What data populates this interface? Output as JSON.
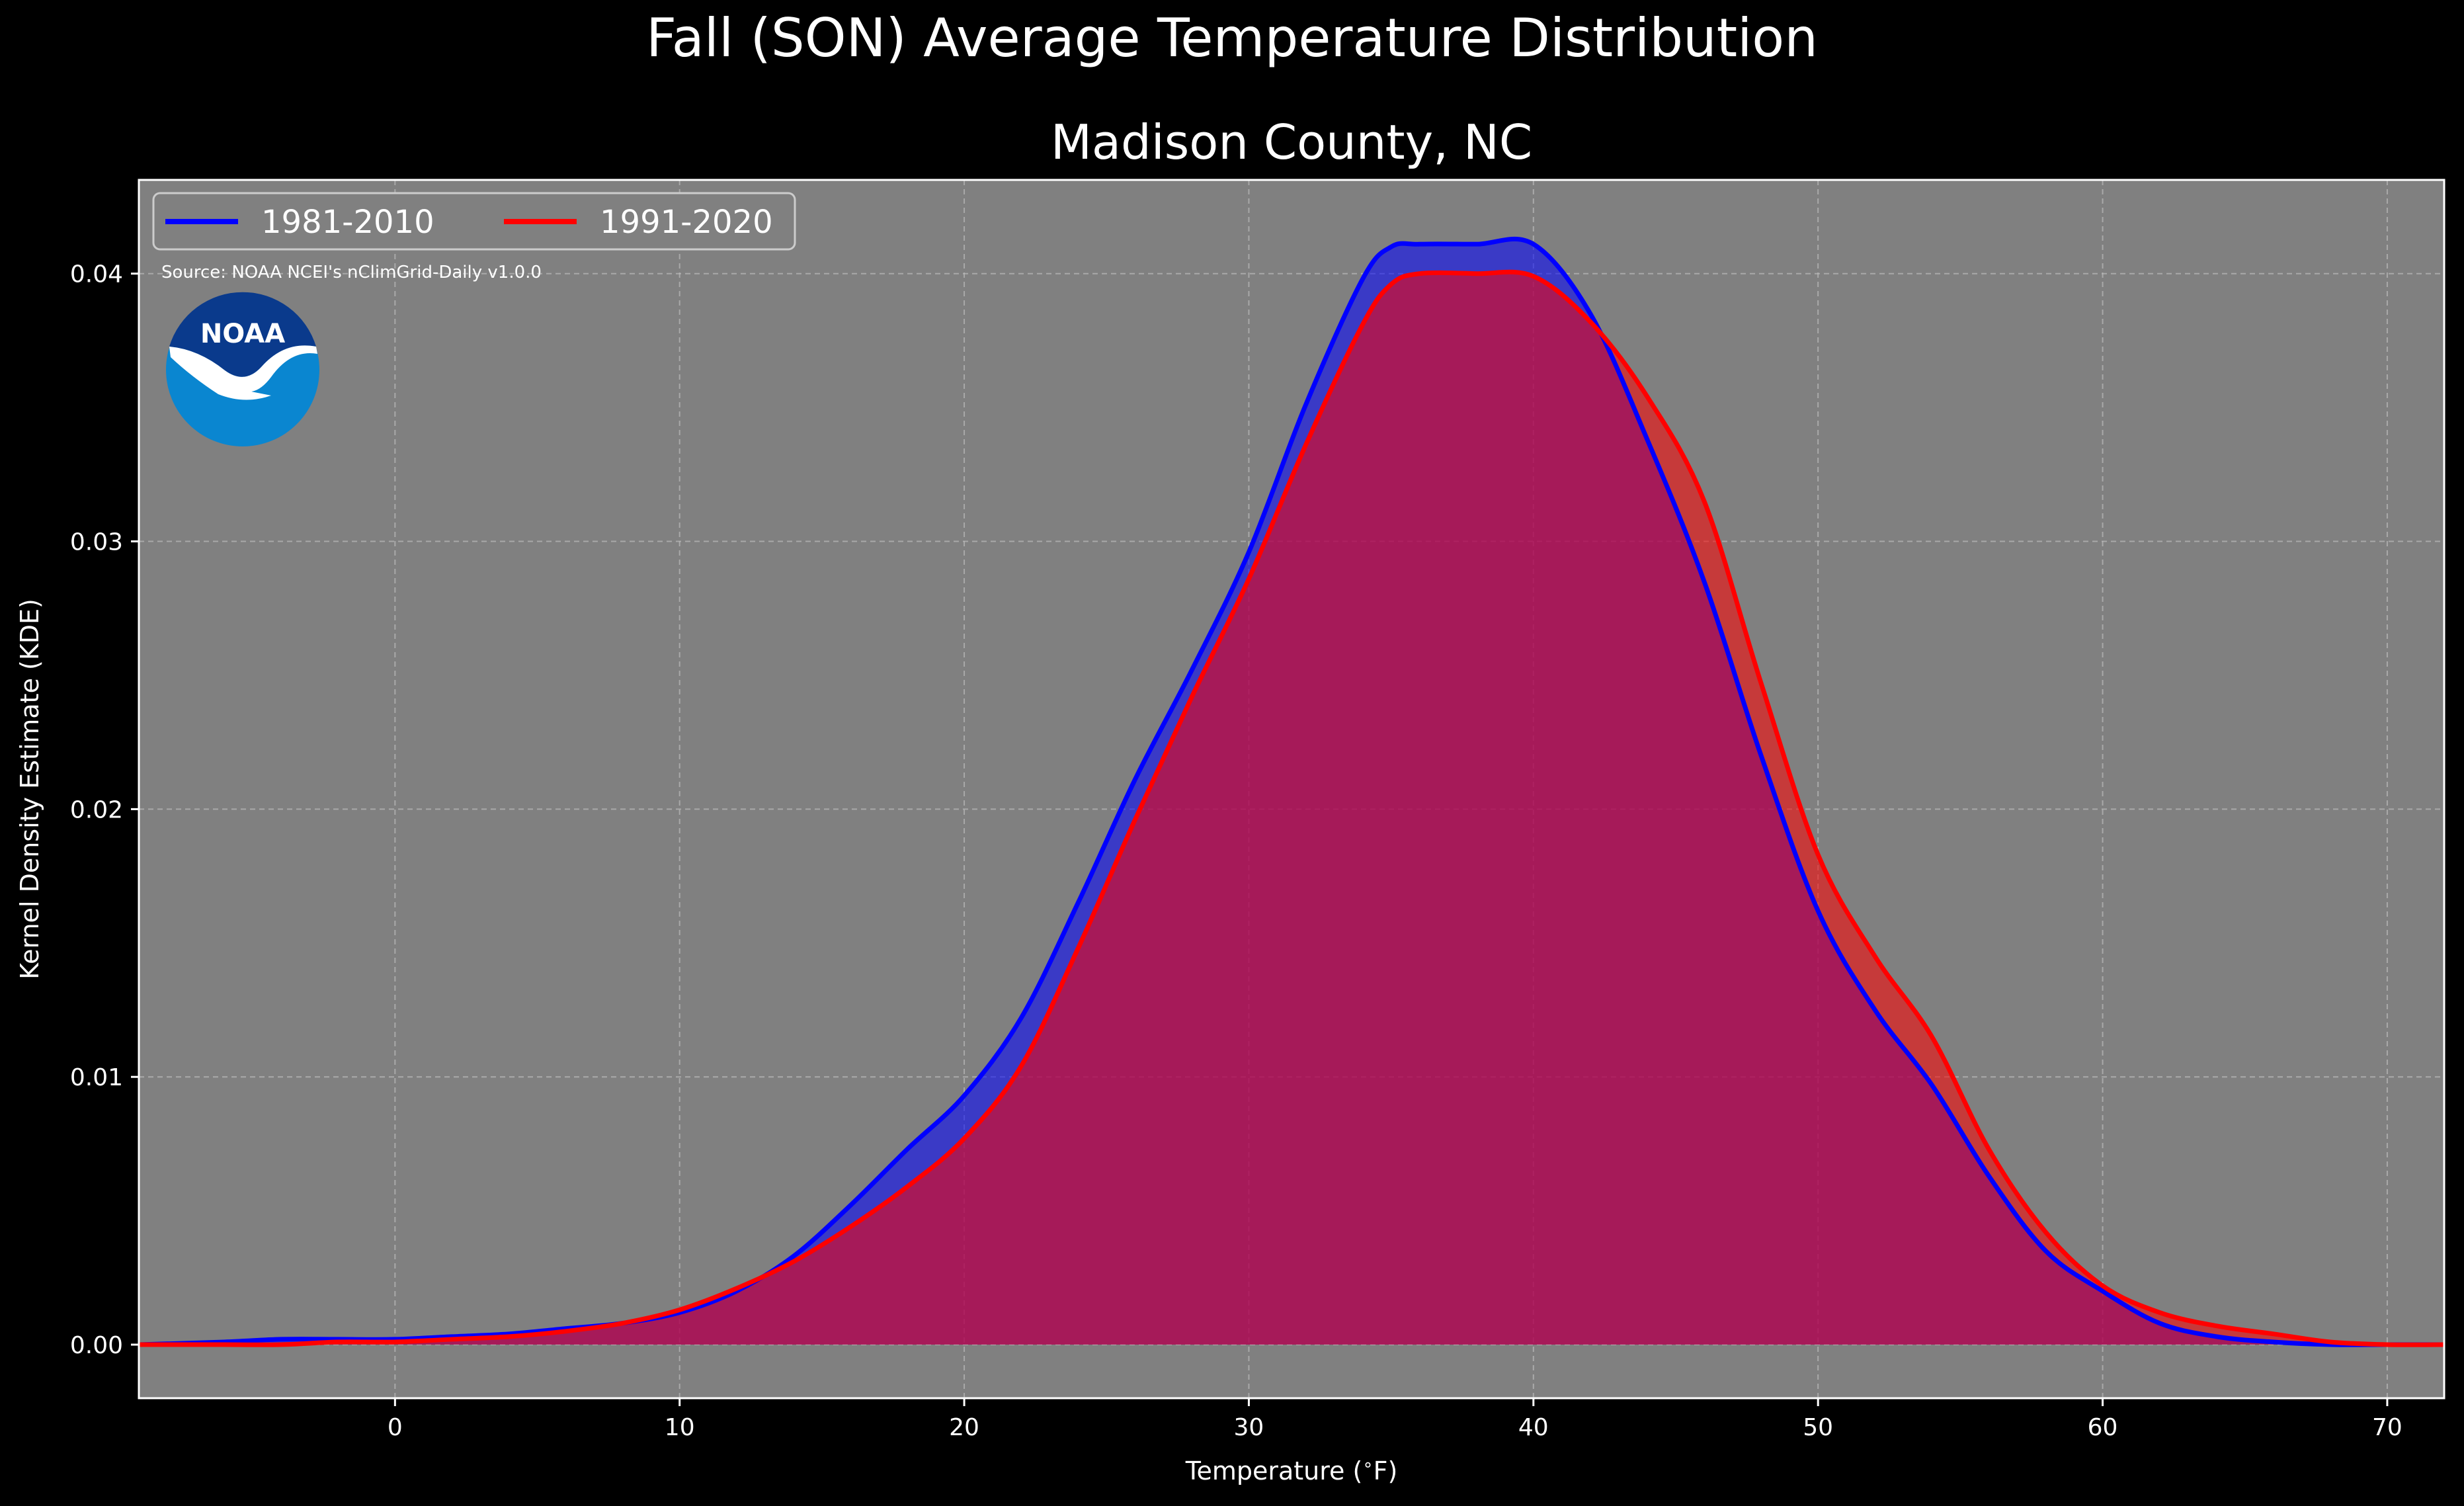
{
  "figure": {
    "suptitle": "Fall (SON) Average Temperature Distribution",
    "subtitle": "Madison County, NC",
    "source": "Source: NOAA NCEI's nClimGrid-Daily v1.0.0",
    "logo_text": "NOAA"
  },
  "colors": {
    "background": "#000000",
    "plot_background": "#808080",
    "series_1981_2010": "#0000ff",
    "series_1991_2020": "#ff0000",
    "grid": "#bbbbbb",
    "logo_dark": "#0a3a8c",
    "logo_light": "#0a86d0"
  },
  "chart_data": {
    "type": "area",
    "title": "Madison County, NC",
    "xlabel": "Temperature ($^\\circ$F)",
    "ylabel": "Kernel Density Estimate (KDE)",
    "xlim": [
      -9,
      72
    ],
    "ylim": [
      -0.002,
      0.0435
    ],
    "xticks": [
      0,
      10,
      20,
      30,
      40,
      50,
      60,
      70
    ],
    "xtick_labels": [
      "0",
      "10",
      "20",
      "30",
      "40",
      "50",
      "60",
      "70"
    ],
    "yticks": [
      0.0,
      0.01,
      0.02,
      0.03,
      0.04
    ],
    "ytick_labels": [
      "0.00",
      "0.01",
      "0.02",
      "0.03",
      "0.04"
    ],
    "grid": true,
    "legend_position": "top-left",
    "series": [
      {
        "name": "1981-2010",
        "x": [
          -9,
          -6,
          -4,
          -2,
          0,
          2,
          4,
          6,
          8,
          10,
          12,
          14,
          16,
          18,
          20,
          22,
          24,
          26,
          28,
          30,
          32,
          34,
          35,
          36,
          38,
          40,
          42,
          44,
          46,
          48,
          50,
          52,
          54,
          56,
          58,
          60,
          62,
          64,
          66,
          68,
          70,
          72
        ],
        "values": [
          0.0,
          0.0001,
          0.0002,
          0.0002,
          0.0002,
          0.0003,
          0.0004,
          0.0006,
          0.0008,
          0.0012,
          0.002,
          0.0033,
          0.0052,
          0.0073,
          0.0093,
          0.0122,
          0.0165,
          0.0211,
          0.0252,
          0.0296,
          0.0351,
          0.0398,
          0.041,
          0.0411,
          0.0411,
          0.0411,
          0.0385,
          0.0338,
          0.0285,
          0.022,
          0.0162,
          0.0125,
          0.0097,
          0.0063,
          0.0035,
          0.002,
          0.0008,
          0.0003,
          0.0001,
          0.0,
          0.0,
          0.0
        ]
      },
      {
        "name": "1991-2020",
        "x": [
          -9,
          -6,
          -4,
          -2,
          0,
          2,
          4,
          6,
          8,
          10,
          12,
          14,
          16,
          18,
          20,
          22,
          24,
          26,
          28,
          30,
          32,
          34,
          35,
          36,
          38,
          40,
          42,
          44,
          46,
          48,
          50,
          52,
          54,
          56,
          58,
          60,
          62,
          64,
          66,
          68,
          70,
          72
        ],
        "values": [
          0.0,
          0.0,
          0.0,
          0.0001,
          0.0001,
          0.0002,
          0.0003,
          0.0005,
          0.0008,
          0.0013,
          0.0021,
          0.0031,
          0.0044,
          0.0059,
          0.0077,
          0.0104,
          0.0148,
          0.0196,
          0.0242,
          0.0286,
          0.0336,
          0.0381,
          0.0396,
          0.04,
          0.04,
          0.0399,
          0.0382,
          0.0354,
          0.0315,
          0.0247,
          0.0183,
          0.0145,
          0.0115,
          0.0073,
          0.0042,
          0.0022,
          0.0012,
          0.0007,
          0.0004,
          0.0001,
          0.0,
          0.0
        ]
      }
    ]
  }
}
